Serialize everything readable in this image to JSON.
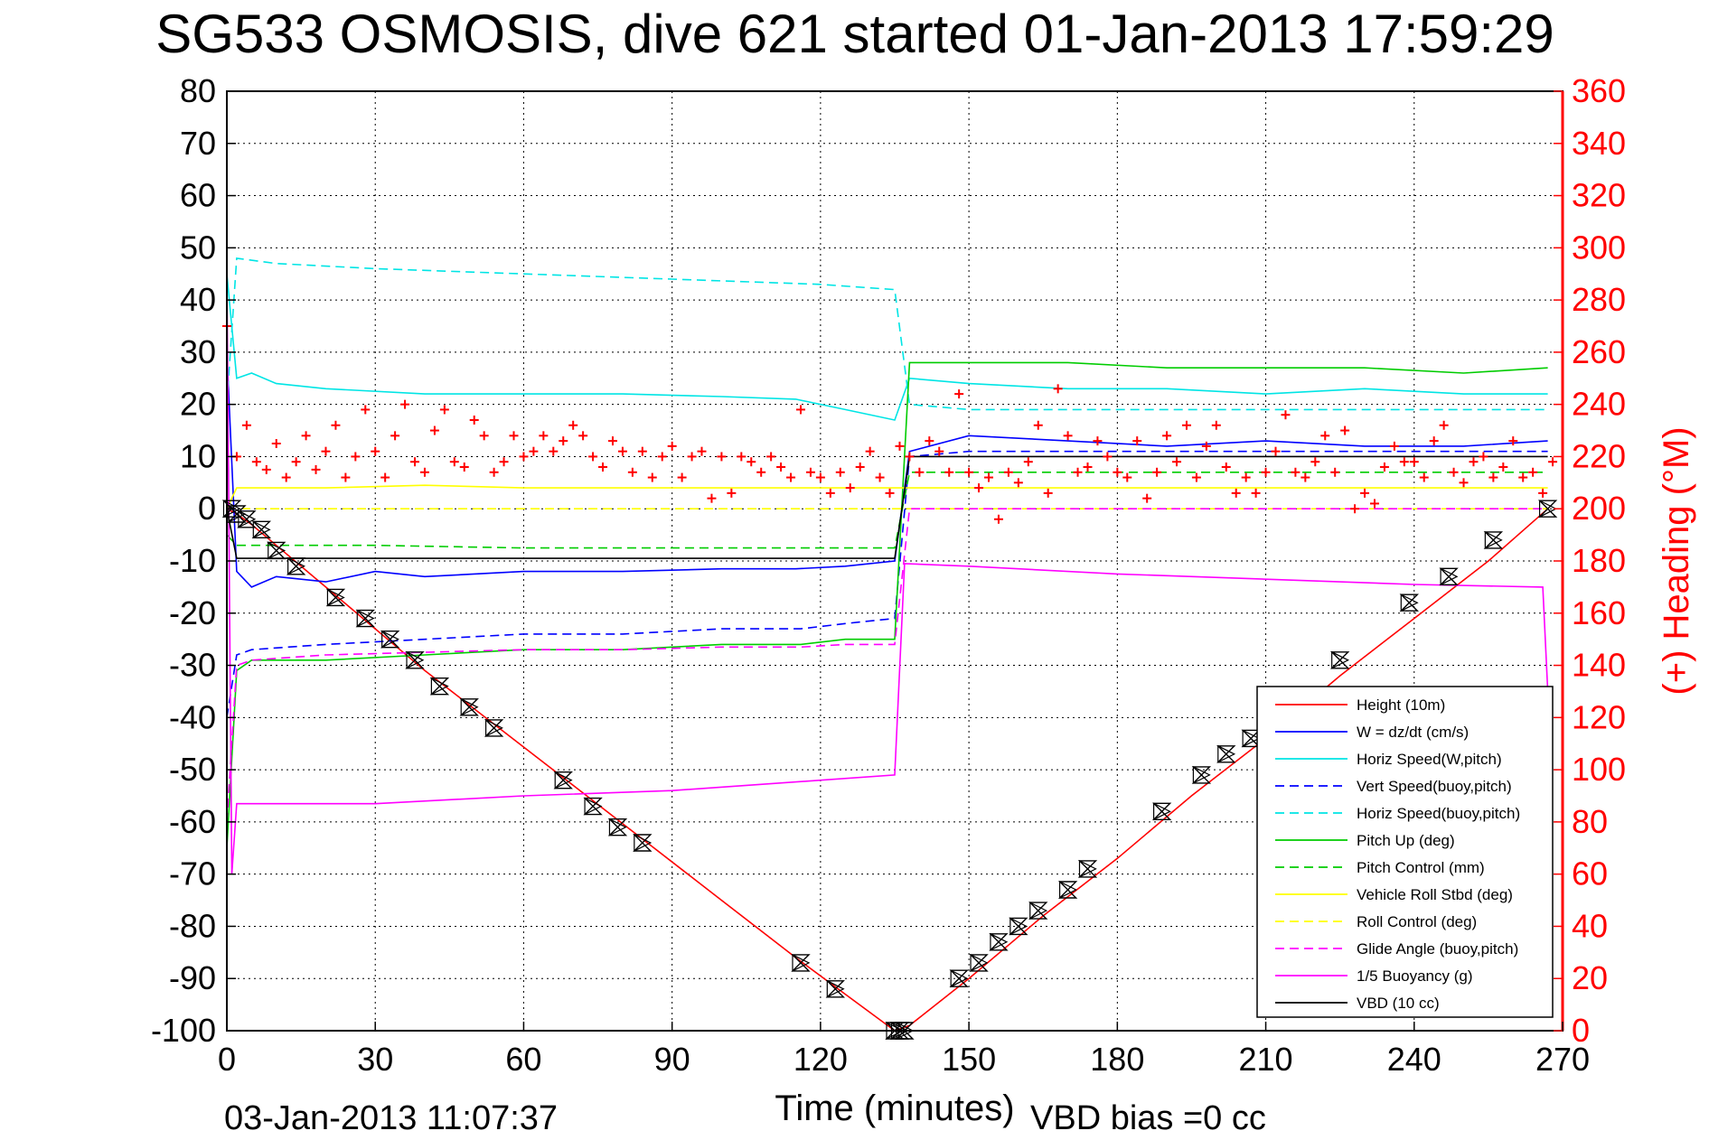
{
  "chart_data": {
    "type": "line",
    "title": "SG533 OSMOSIS, dive 621 started 01-Jan-2013 17:59:29",
    "xlabel": "Time (minutes)",
    "ylabel": "",
    "ylabel_right": "(+) Heading (°M)",
    "xlim": [
      0,
      270
    ],
    "ylim": [
      -100,
      80
    ],
    "ylim_right": [
      0,
      360
    ],
    "x_ticks": [
      0,
      30,
      60,
      90,
      120,
      150,
      180,
      210,
      240,
      270
    ],
    "y_ticks": [
      80,
      70,
      60,
      50,
      40,
      30,
      20,
      10,
      0,
      -10,
      -20,
      -30,
      -40,
      -50,
      -60,
      -70,
      -80,
      -90,
      -100
    ],
    "y_ticks_right": [
      360,
      340,
      320,
      300,
      280,
      260,
      240,
      220,
      200,
      180,
      160,
      140,
      120,
      100,
      80,
      60,
      40,
      20,
      0
    ],
    "grid": true,
    "legend_position": "bottom-right",
    "footer_left": "03-Jan-2013 11:07:37",
    "footer_right": "VBD bias =0 cc",
    "colors": {
      "height": "#ff0000",
      "w": "#0000ff",
      "horiz": "#00e5e5",
      "pitch": "#00cc00",
      "roll": "#ffff00",
      "glide": "#ff00ff",
      "vbd": "#000000",
      "heading": "#ff0000"
    },
    "series": [
      {
        "name": "Height (10m)",
        "color": "#ff0000",
        "dash": "solid",
        "x": [
          0,
          2,
          5,
          10,
          20,
          30,
          40,
          55,
          70,
          85,
          100,
          115,
          125,
          135,
          138,
          150,
          165,
          180,
          195,
          210,
          225,
          240,
          255,
          267
        ],
        "y": [
          0,
          -1,
          -3,
          -7,
          -15,
          -23,
          -31,
          -42,
          -53,
          -64,
          -75,
          -86,
          -93,
          -100,
          -99,
          -90,
          -78,
          -67,
          -55,
          -44,
          -32,
          -21,
          -10,
          0
        ]
      },
      {
        "name": "W = dz/dt (cm/s)",
        "color": "#0000ff",
        "dash": "solid",
        "x": [
          0,
          2,
          5,
          10,
          20,
          30,
          40,
          60,
          80,
          100,
          115,
          125,
          135,
          138,
          150,
          170,
          190,
          210,
          230,
          250,
          267
        ],
        "y": [
          30,
          -12,
          -15,
          -13,
          -14,
          -12,
          -13,
          -12,
          -12,
          -11.5,
          -11.5,
          -11,
          -10,
          11,
          14,
          13,
          12,
          13,
          12,
          12,
          13
        ]
      },
      {
        "name": "Horiz Speed(W,pitch)",
        "color": "#00e5e5",
        "dash": "solid",
        "x": [
          0,
          2,
          5,
          10,
          20,
          40,
          60,
          80,
          100,
          115,
          125,
          135,
          138,
          150,
          170,
          190,
          210,
          230,
          250,
          267
        ],
        "y": [
          45,
          25,
          26,
          24,
          23,
          22,
          22,
          22,
          21.5,
          21,
          19,
          17,
          25,
          24,
          23,
          23,
          22,
          23,
          22,
          22
        ]
      },
      {
        "name": "Vert Speed(buoy,pitch)",
        "color": "#0000ff",
        "dash": "dashed",
        "x": [
          0,
          2,
          5,
          20,
          40,
          60,
          80,
          100,
          116,
          125,
          135,
          138,
          150,
          170,
          190,
          210,
          230,
          250,
          267
        ],
        "y": [
          -40,
          -28,
          -27,
          -26,
          -25,
          -24,
          -24,
          -23,
          -23,
          -22,
          -21,
          10,
          11,
          11,
          11,
          11,
          11,
          11,
          11
        ]
      },
      {
        "name": "Horiz Speed(buoy,pitch)",
        "color": "#00e5e5",
        "dash": "dashed",
        "x": [
          0,
          2,
          10,
          30,
          60,
          90,
          120,
          135,
          138,
          150,
          170,
          190,
          210,
          230,
          250,
          267
        ],
        "y": [
          20,
          48,
          47,
          46,
          45,
          44,
          43,
          42,
          20,
          19,
          19,
          19,
          19,
          19,
          19,
          19
        ]
      },
      {
        "name": "Pitch Up (deg)",
        "color": "#00cc00",
        "dash": "solid",
        "x": [
          0,
          2,
          5,
          20,
          40,
          60,
          80,
          100,
          116,
          125,
          135,
          138,
          150,
          170,
          190,
          210,
          230,
          250,
          267
        ],
        "y": [
          -65,
          -31,
          -29,
          -29,
          -28,
          -27,
          -27,
          -26,
          -26,
          -25,
          -25,
          28,
          28,
          28,
          27,
          27,
          27,
          26,
          27
        ]
      },
      {
        "name": "Pitch Control (mm)",
        "color": "#00cc00",
        "dash": "dashed",
        "x": [
          0,
          2,
          30,
          60,
          90,
          120,
          135,
          138,
          170,
          210,
          267
        ],
        "y": [
          -5,
          -7,
          -7,
          -7.5,
          -7.5,
          -7.5,
          -7.5,
          7,
          7,
          7,
          7
        ]
      },
      {
        "name": "Vehicle Roll Stbd (deg)",
        "color": "#ffff00",
        "dash": "solid",
        "x": [
          0,
          2,
          20,
          40,
          60,
          80,
          100,
          120,
          135,
          138,
          160,
          180,
          200,
          220,
          240,
          260,
          267
        ],
        "y": [
          0,
          4,
          4,
          4.5,
          4,
          4,
          4,
          4,
          4,
          4,
          4,
          4,
          4,
          4,
          4,
          4,
          4
        ]
      },
      {
        "name": "Roll Control (deg)",
        "color": "#ffff00",
        "dash": "dashed",
        "x": [
          0,
          30,
          60,
          90,
          120,
          135,
          138,
          170,
          210,
          267
        ],
        "y": [
          0,
          0,
          0,
          0,
          0,
          0,
          0,
          0,
          0,
          0
        ]
      },
      {
        "name": "Glide Angle (buoy,pitch)",
        "color": "#ff00ff",
        "dash": "dashed",
        "x": [
          0,
          2,
          5,
          20,
          40,
          60,
          80,
          100,
          116,
          125,
          135,
          138,
          150,
          170,
          190,
          210,
          230,
          250,
          267
        ],
        "y": [
          -60,
          -30,
          -29,
          -28,
          -27.5,
          -27,
          -27,
          -26.5,
          -26.5,
          -26,
          -26,
          0,
          0,
          0,
          0,
          0,
          0,
          0,
          0
        ]
      },
      {
        "name": "1/5 Buoyancy (g)",
        "color": "#ff00ff",
        "dash": "solid",
        "x": [
          0,
          1,
          2,
          30,
          60,
          90,
          120,
          135,
          137,
          150,
          180,
          210,
          240,
          266,
          267
        ],
        "y": [
          45,
          -70,
          -56.5,
          -56.5,
          -55,
          -54,
          -52,
          -51,
          -10.5,
          -11,
          -12.5,
          -13.5,
          -14.5,
          -15,
          -35
        ]
      },
      {
        "name": "VBD (10 cc)",
        "color": "#000000",
        "dash": "solid",
        "x": [
          0,
          2,
          135,
          138,
          267
        ],
        "y": [
          0,
          -9.5,
          -9.5,
          10,
          10
        ]
      }
    ],
    "heading_series": {
      "name": "Heading",
      "color": "#ff0000",
      "marker": "+",
      "axis": "right",
      "x": [
        0,
        2,
        4,
        6,
        8,
        10,
        12,
        14,
        16,
        18,
        20,
        22,
        24,
        26,
        28,
        30,
        32,
        34,
        36,
        38,
        40,
        42,
        44,
        46,
        48,
        50,
        52,
        54,
        56,
        58,
        60,
        62,
        64,
        66,
        68,
        70,
        72,
        74,
        76,
        78,
        80,
        82,
        84,
        86,
        88,
        90,
        92,
        94,
        96,
        98,
        100,
        102,
        104,
        106,
        108,
        110,
        112,
        114,
        116,
        118,
        120,
        122,
        124,
        126,
        128,
        130,
        132,
        134,
        136,
        138,
        140,
        142,
        144,
        146,
        148,
        150,
        152,
        154,
        156,
        158,
        160,
        162,
        164,
        166,
        168,
        170,
        172,
        174,
        176,
        178,
        180,
        182,
        184,
        186,
        188,
        190,
        192,
        194,
        196,
        198,
        200,
        202,
        204,
        206,
        208,
        210,
        212,
        214,
        216,
        218,
        220,
        222,
        224,
        226,
        228,
        230,
        232,
        234,
        236,
        238,
        240,
        242,
        244,
        246,
        248,
        250,
        252,
        254,
        256,
        258,
        260,
        262,
        264,
        266,
        268
      ],
      "y": [
        270,
        220,
        232,
        218,
        215,
        225,
        212,
        218,
        228,
        215,
        222,
        232,
        212,
        220,
        238,
        222,
        212,
        228,
        240,
        218,
        214,
        230,
        238,
        218,
        216,
        234,
        228,
        214,
        218,
        228,
        220,
        222,
        228,
        222,
        226,
        232,
        228,
        220,
        216,
        226,
        222,
        214,
        222,
        212,
        220,
        224,
        212,
        220,
        222,
        204,
        220,
        206,
        220,
        218,
        214,
        220,
        216,
        212,
        238,
        214,
        212,
        206,
        214,
        208,
        216,
        222,
        212,
        206,
        224,
        220,
        214,
        226,
        222,
        214,
        244,
        214,
        208,
        212,
        196,
        214,
        210,
        218,
        232,
        206,
        246,
        228,
        214,
        216,
        226,
        220,
        214,
        212,
        226,
        204,
        214,
        228,
        218,
        232,
        212,
        224,
        232,
        216,
        206,
        212,
        206,
        214,
        222,
        236,
        214,
        212,
        218,
        228,
        214,
        230,
        200,
        206,
        202,
        216,
        224,
        218,
        218,
        212,
        226,
        232,
        214,
        210,
        218,
        220,
        212,
        216,
        226,
        212,
        214,
        206,
        218
      ]
    },
    "markers": {
      "name": "depth samples",
      "x": [
        1,
        2,
        4,
        7,
        10,
        14,
        22,
        28,
        33,
        38,
        43,
        49,
        54,
        68,
        74,
        79,
        84,
        116,
        123,
        135,
        136,
        137,
        148,
        152,
        156,
        160,
        164,
        170,
        174,
        189,
        197,
        202,
        207,
        214,
        225,
        239,
        247,
        256,
        267
      ],
      "y": [
        0,
        -1,
        -2,
        -4,
        -8,
        -11,
        -17,
        -21,
        -25,
        -29,
        -34,
        -38,
        -42,
        -52,
        -57,
        -61,
        -64,
        -87,
        -92,
        -100,
        -100,
        -100,
        -90,
        -87,
        -83,
        -80,
        -77,
        -73,
        -69,
        -58,
        -51,
        -47,
        -44,
        -37,
        -29,
        -18,
        -13,
        -6,
        0
      ]
    },
    "legend": [
      {
        "label": "Height (10m)",
        "color": "#ff0000",
        "dash": "solid"
      },
      {
        "label": "W = dz/dt (cm/s)",
        "color": "#0000ff",
        "dash": "solid"
      },
      {
        "label": "Horiz Speed(W,pitch)",
        "color": "#00e5e5",
        "dash": "solid"
      },
      {
        "label": "Vert Speed(buoy,pitch)",
        "color": "#0000ff",
        "dash": "dashed"
      },
      {
        "label": "Horiz Speed(buoy,pitch)",
        "color": "#00e5e5",
        "dash": "dashed"
      },
      {
        "label": "Pitch Up (deg)",
        "color": "#00cc00",
        "dash": "solid"
      },
      {
        "label": "Pitch Control (mm)",
        "color": "#00cc00",
        "dash": "dashed"
      },
      {
        "label": "Vehicle Roll Stbd (deg)",
        "color": "#ffff00",
        "dash": "solid"
      },
      {
        "label": "Roll Control (deg)",
        "color": "#ffff00",
        "dash": "dashed"
      },
      {
        "label": "Glide Angle (buoy,pitch)",
        "color": "#ff00ff",
        "dash": "dashed"
      },
      {
        "label": "1/5 Buoyancy (g)",
        "color": "#ff00ff",
        "dash": "solid"
      },
      {
        "label": "VBD (10 cc)",
        "color": "#000000",
        "dash": "solid"
      }
    ]
  }
}
